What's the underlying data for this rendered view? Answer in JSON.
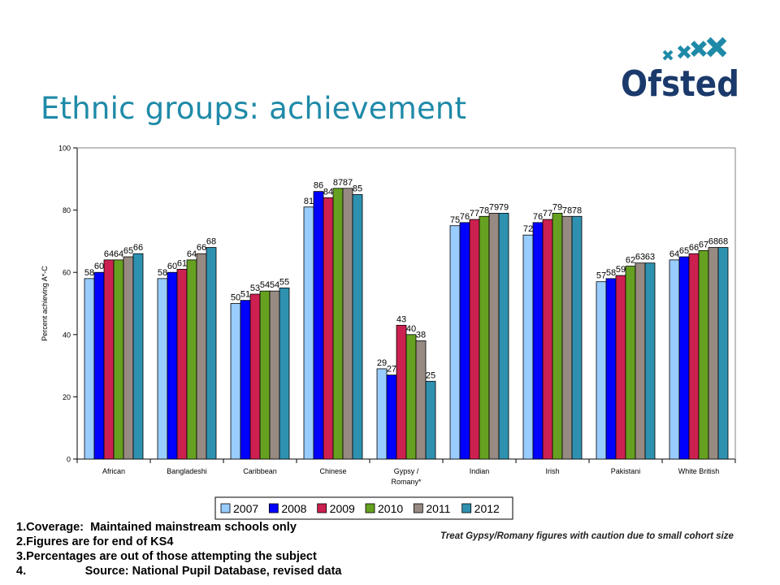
{
  "page": {
    "title": "Ethnic groups: achievement",
    "logo_text": "Ofsted"
  },
  "colors": {
    "title": "#1f8aa8",
    "logo_text": "#1b3a6b",
    "logo_stars": "#1f8aa8"
  },
  "chart_data": {
    "type": "bar",
    "ylabel": "Percent achieving A*-C",
    "ylim": [
      0,
      100
    ],
    "yticks": [
      0,
      20,
      40,
      60,
      80,
      100
    ],
    "grid": false,
    "legend_position": "bottom",
    "categories": [
      [
        "African"
      ],
      [
        "Bangladeshi"
      ],
      [
        "Caribbean"
      ],
      [
        "Chinese"
      ],
      [
        "Gypsy /",
        "Romany*"
      ],
      [
        "Indian"
      ],
      [
        "Irish"
      ],
      [
        "Pakistani"
      ],
      [
        "White British"
      ]
    ],
    "series": [
      {
        "name": "2007",
        "color": "#99ccff",
        "values": [
          58,
          58,
          50,
          81,
          29,
          75,
          72,
          57,
          64
        ]
      },
      {
        "name": "2008",
        "color": "#0000ff",
        "values": [
          60,
          60,
          51,
          86,
          27,
          76,
          76,
          58,
          65
        ]
      },
      {
        "name": "2009",
        "color": "#cc2050",
        "values": [
          64,
          61,
          53,
          84,
          43,
          77,
          77,
          59,
          66
        ]
      },
      {
        "name": "2010",
        "color": "#66a020",
        "values": [
          64,
          64,
          54,
          87,
          40,
          78,
          79,
          62,
          67
        ]
      },
      {
        "name": "2011",
        "color": "#968a82",
        "values": [
          65,
          66,
          54,
          87,
          38,
          79,
          78,
          63,
          68
        ]
      },
      {
        "name": "2012",
        "color": "#2f91b0",
        "values": [
          66,
          68,
          55,
          85,
          25,
          79,
          78,
          63,
          68
        ]
      }
    ]
  },
  "notes": [
    "1.Coverage:  Maintained mainstream schools only",
    "2.Figures are for end of KS4",
    "3.Percentages are out of those attempting the subject",
    "4.                  Source: National Pupil Database, revised data"
  ],
  "caution_note": "Treat Gypsy/Romany figures with caution due to small cohort size"
}
